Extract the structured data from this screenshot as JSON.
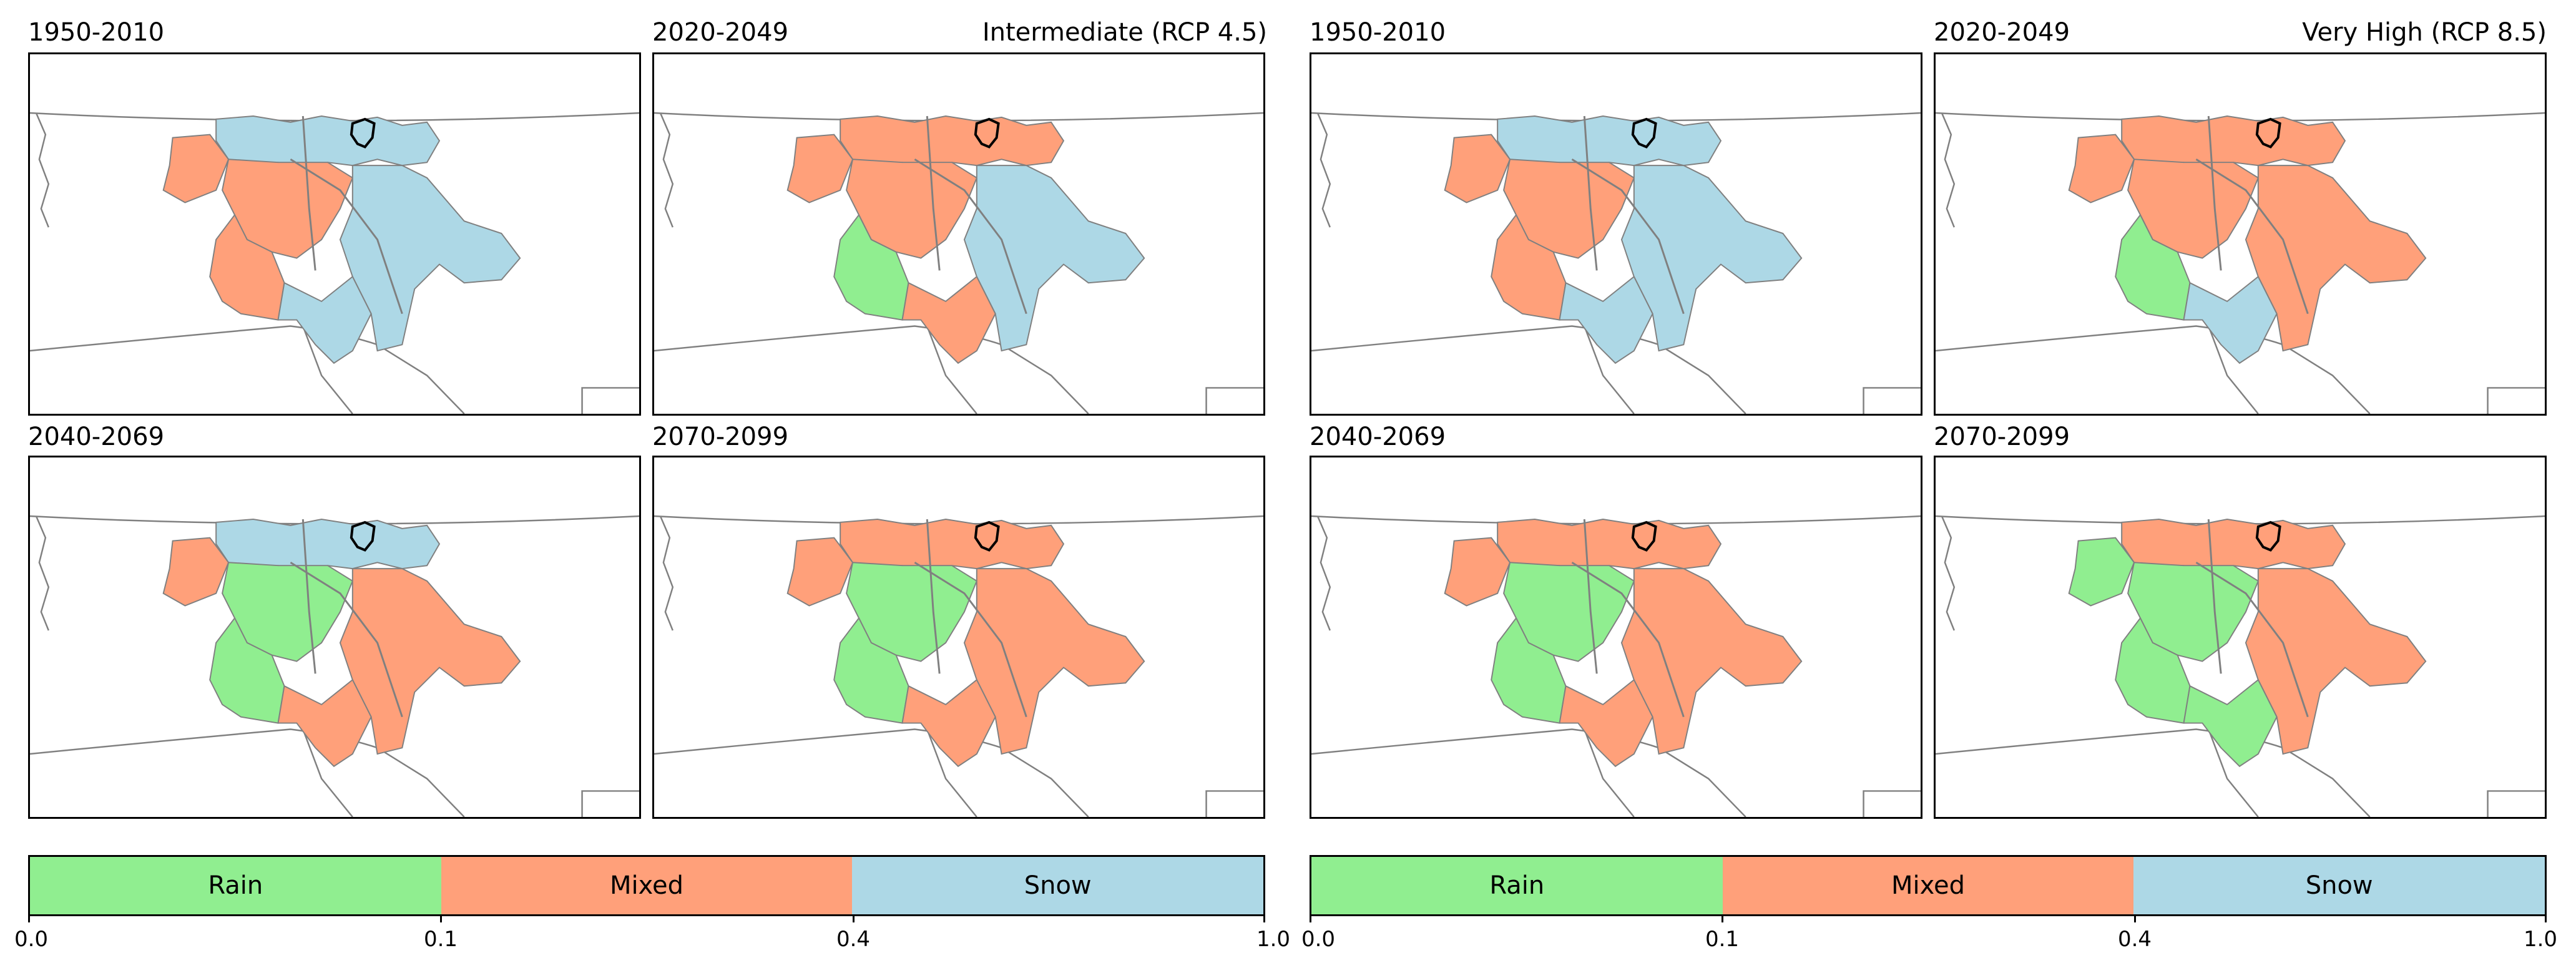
{
  "scenarios": [
    {
      "title": "Intermediate (RCP 4.5)",
      "panels": [
        {
          "period": "1950-2010",
          "classification": "mostly snow with mixed central areas"
        },
        {
          "period": "2020-2049",
          "classification": "mixed expanding with rain in southwest"
        },
        {
          "period": "2040-2069",
          "classification": "mixed dominant with rain in southwest and snow remnants north"
        },
        {
          "period": "2070-2099",
          "classification": "mixed dominant with rain in southwest"
        }
      ]
    },
    {
      "title": "Very High (RCP 8.5)",
      "panels": [
        {
          "period": "1950-2010",
          "classification": "mostly snow with mixed central areas"
        },
        {
          "period": "2020-2049",
          "classification": "mixed expanding with rain in southwest"
        },
        {
          "period": "2040-2069",
          "classification": "mixed dominant with rain in southwest"
        },
        {
          "period": "2070-2099",
          "classification": "mixed dominant with larger rain area"
        }
      ]
    }
  ],
  "legend": {
    "categories": [
      {
        "label": "Rain",
        "color": "#90ee90"
      },
      {
        "label": "Mixed",
        "color": "#ffa07a"
      },
      {
        "label": "Snow",
        "color": "#add8e6"
      }
    ],
    "ticks": [
      "0.0",
      "0.1",
      "0.4",
      "1.0"
    ]
  },
  "colors": {
    "rain": "#90ee90",
    "mixed": "#ffa07a",
    "snow": "#add8e6",
    "border": "#808080",
    "outline": "#000000"
  }
}
